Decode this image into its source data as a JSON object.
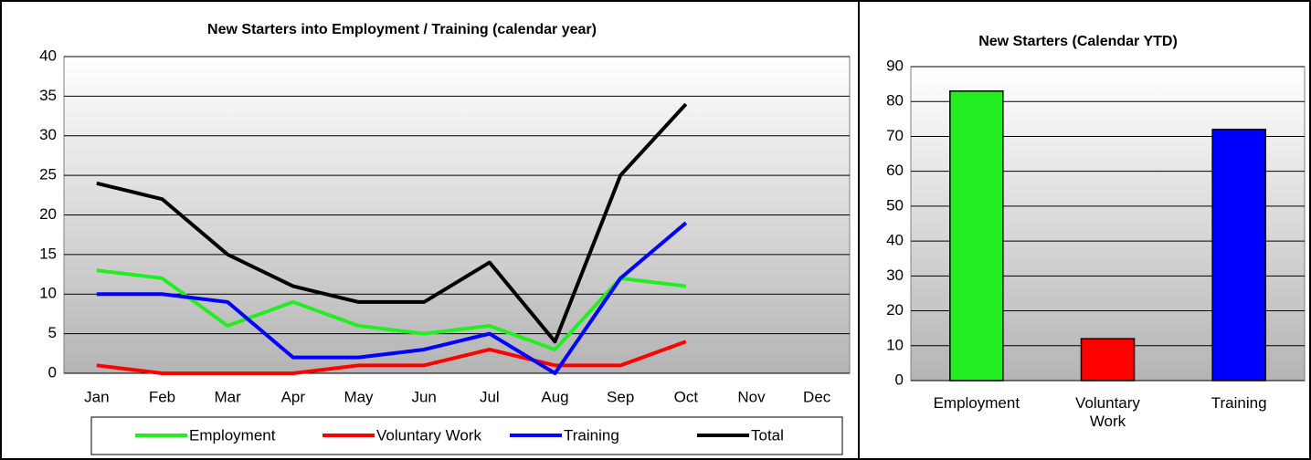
{
  "chart_data": [
    {
      "type": "line",
      "title": "New Starters into Employment / Training (calendar year)",
      "categories": [
        "Jan",
        "Feb",
        "Mar",
        "Apr",
        "May",
        "Jun",
        "Jul",
        "Aug",
        "Sep",
        "Oct",
        "Nov",
        "Dec"
      ],
      "series": [
        {
          "name": "Employment",
          "color": "#22ee22",
          "values": [
            13,
            12,
            6,
            9,
            6,
            5,
            6,
            3,
            12,
            11,
            null,
            null
          ]
        },
        {
          "name": "Voluntary Work",
          "color": "#ff0000",
          "values": [
            1,
            0,
            0,
            0,
            1,
            1,
            3,
            1,
            1,
            4,
            null,
            null
          ]
        },
        {
          "name": "Training",
          "color": "#0000ff",
          "values": [
            10,
            10,
            9,
            2,
            2,
            3,
            5,
            0,
            12,
            19,
            null,
            null
          ]
        },
        {
          "name": "Total",
          "color": "#000000",
          "values": [
            24,
            22,
            15,
            11,
            9,
            9,
            14,
            4,
            25,
            34,
            null,
            null
          ]
        }
      ],
      "ylim": [
        0,
        40
      ],
      "yticks": [
        0,
        5,
        10,
        15,
        20,
        25,
        30,
        35,
        40
      ],
      "grid": true,
      "legend": "bottom"
    },
    {
      "type": "bar",
      "title": "New Starters (Calendar YTD)",
      "categories": [
        "Employment",
        "Voluntary Work",
        "Training"
      ],
      "values": [
        83,
        12,
        72
      ],
      "colors": [
        "#22ee22",
        "#ff0000",
        "#0000ff"
      ],
      "ylim": [
        0,
        90
      ],
      "yticks": [
        0,
        10,
        20,
        30,
        40,
        50,
        60,
        70,
        80,
        90
      ],
      "grid": true
    }
  ]
}
